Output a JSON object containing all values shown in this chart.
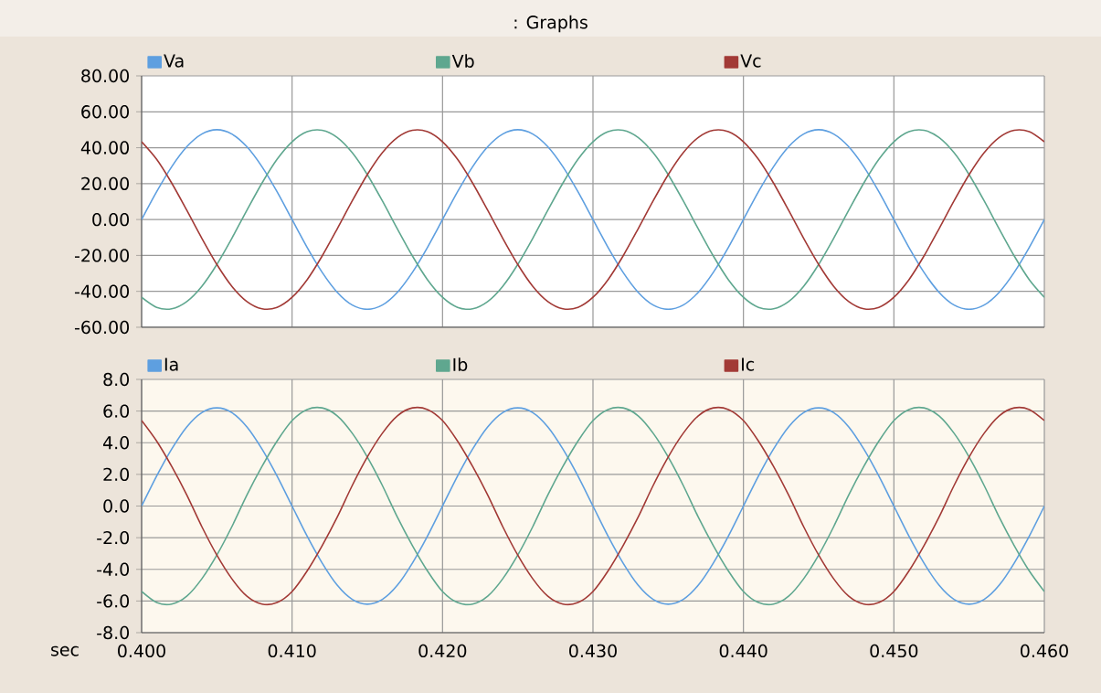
{
  "chart_data": [
    {
      "type": "line",
      "title": ": Graphs",
      "legend": "top",
      "grid": true,
      "tick_labels": "y",
      "x": [
        0.4,
        0.401,
        0.402,
        0.403,
        0.404,
        0.405,
        0.406,
        0.407,
        0.408,
        0.409,
        0.41,
        0.411,
        0.412,
        0.413,
        0.414,
        0.415,
        0.416,
        0.417,
        0.418,
        0.419,
        0.42,
        0.421,
        0.422,
        0.423,
        0.424,
        0.425,
        0.426,
        0.427,
        0.428,
        0.429,
        0.43,
        0.431,
        0.432,
        0.433,
        0.434,
        0.435,
        0.436,
        0.437,
        0.438,
        0.439,
        0.44,
        0.441,
        0.442,
        0.443,
        0.444,
        0.445,
        0.446,
        0.447,
        0.448,
        0.449,
        0.45,
        0.451,
        0.452,
        0.453,
        0.454,
        0.455,
        0.456,
        0.457,
        0.458,
        0.459,
        0.46
      ],
      "xlim": [
        0.4,
        0.46
      ],
      "xticks": [
        {
          "value": 0.4,
          "label": null
        },
        {
          "value": 0.41,
          "label": null
        },
        {
          "value": 0.42,
          "label": null
        },
        {
          "value": 0.43,
          "label": null
        },
        {
          "value": 0.44,
          "label": null
        },
        {
          "value": 0.45,
          "label": null
        },
        {
          "value": 0.46,
          "label": null
        }
      ],
      "ylim": [
        -60,
        80
      ],
      "yticks": [
        {
          "value": -60,
          "label": "-60.00"
        },
        {
          "value": -40,
          "label": "-40.00"
        },
        {
          "value": -20,
          "label": "-20.00"
        },
        {
          "value": 0,
          "label": "0.00"
        },
        {
          "value": 20,
          "label": "20.00"
        },
        {
          "value": 40,
          "label": "40.00"
        },
        {
          "value": 60,
          "label": "60.00"
        },
        {
          "value": 80,
          "label": "80.00"
        }
      ],
      "series": [
        {
          "name": "Va",
          "color": "#5e9fe0",
          "values": [
            0,
            15.5,
            29.4,
            40.5,
            47.6,
            50,
            47.6,
            40.5,
            29.4,
            15.5,
            0,
            -15.5,
            -29.4,
            -40.5,
            -47.6,
            -50,
            -47.6,
            -40.5,
            -29.4,
            -15.5,
            0,
            15.5,
            29.4,
            40.5,
            47.6,
            50,
            47.6,
            40.5,
            29.4,
            15.5,
            0,
            -15.5,
            -29.4,
            -40.5,
            -47.6,
            -50,
            -47.6,
            -40.5,
            -29.4,
            -15.5,
            0,
            15.5,
            29.4,
            40.5,
            47.6,
            50,
            47.6,
            40.5,
            29.4,
            15.5,
            0,
            -15.5,
            -29.4,
            -40.5,
            -47.6,
            -50,
            -47.6,
            -40.5,
            -29.4,
            -15.5,
            0
          ]
        },
        {
          "name": "Vb",
          "color": "#5fa78f",
          "values": [
            -43.3,
            -48.9,
            -49.7,
            -45.7,
            -37.2,
            -25,
            -10.4,
            5.2,
            20.3,
            33.5,
            43.3,
            48.9,
            49.7,
            45.7,
            37.2,
            25,
            10.4,
            -5.2,
            -20.3,
            -33.5,
            -43.3,
            -48.9,
            -49.7,
            -45.7,
            -37.2,
            -25,
            -10.4,
            5.2,
            20.3,
            33.5,
            43.3,
            48.9,
            49.7,
            45.7,
            37.2,
            25,
            10.4,
            -5.2,
            -20.3,
            -33.5,
            -43.3,
            -48.9,
            -49.7,
            -45.7,
            -37.2,
            -25,
            -10.4,
            5.2,
            20.3,
            33.5,
            43.3,
            48.9,
            49.7,
            45.7,
            37.2,
            25,
            10.4,
            -5.2,
            -20.3,
            -33.5,
            -43.3
          ]
        },
        {
          "name": "Vc",
          "color": "#a23a36",
          "values": [
            43.3,
            33.5,
            20.3,
            5.2,
            -10.4,
            -25,
            -37.2,
            -45.7,
            -49.7,
            -48.9,
            -43.3,
            -33.5,
            -20.3,
            -5.2,
            10.4,
            25,
            37.2,
            45.7,
            49.7,
            48.9,
            43.3,
            33.5,
            20.3,
            5.2,
            -10.4,
            -25,
            -37.2,
            -45.7,
            -49.7,
            -48.9,
            -43.3,
            -33.5,
            -20.3,
            -5.2,
            10.4,
            25,
            37.2,
            45.7,
            49.7,
            48.9,
            43.3,
            33.5,
            20.3,
            5.2,
            -10.4,
            -25,
            -37.2,
            -45.7,
            -49.7,
            -48.9,
            -43.3,
            -33.5,
            -20.3,
            -5.2,
            10.4,
            25,
            37.2,
            45.7,
            49.7,
            48.9,
            43.3
          ]
        }
      ]
    },
    {
      "type": "line",
      "xlabel": "sec",
      "legend": "top",
      "grid": true,
      "x": [
        0.4,
        0.401,
        0.402,
        0.403,
        0.404,
        0.405,
        0.406,
        0.407,
        0.408,
        0.409,
        0.41,
        0.411,
        0.412,
        0.413,
        0.414,
        0.415,
        0.416,
        0.417,
        0.418,
        0.419,
        0.42,
        0.421,
        0.422,
        0.423,
        0.424,
        0.425,
        0.426,
        0.427,
        0.428,
        0.429,
        0.43,
        0.431,
        0.432,
        0.433,
        0.434,
        0.435,
        0.436,
        0.437,
        0.438,
        0.439,
        0.44,
        0.441,
        0.442,
        0.443,
        0.444,
        0.445,
        0.446,
        0.447,
        0.448,
        0.449,
        0.45,
        0.451,
        0.452,
        0.453,
        0.454,
        0.455,
        0.456,
        0.457,
        0.458,
        0.459,
        0.46
      ],
      "xlim": [
        0.4,
        0.46
      ],
      "xticks": [
        {
          "value": 0.4,
          "label": "0.400"
        },
        {
          "value": 0.41,
          "label": "0.410"
        },
        {
          "value": 0.42,
          "label": "0.420"
        },
        {
          "value": 0.43,
          "label": "0.430"
        },
        {
          "value": 0.44,
          "label": "0.440"
        },
        {
          "value": 0.45,
          "label": "0.450"
        },
        {
          "value": 0.46,
          "label": "0.460"
        }
      ],
      "ylim": [
        -8,
        8
      ],
      "yticks": [
        {
          "value": -8,
          "label": "-8.0"
        },
        {
          "value": -6,
          "label": "-6.0"
        },
        {
          "value": -4,
          "label": "-4.0"
        },
        {
          "value": -2,
          "label": "-2.0"
        },
        {
          "value": 0,
          "label": "0.0"
        },
        {
          "value": 2,
          "label": "2.0"
        },
        {
          "value": 4,
          "label": "4.0"
        },
        {
          "value": 6,
          "label": "6.0"
        },
        {
          "value": 8,
          "label": "8.0"
        }
      ],
      "series": [
        {
          "name": "Ia",
          "color": "#5e9fe0",
          "values": [
            0,
            1.9,
            3.6,
            5.0,
            5.9,
            6.2,
            5.9,
            5.0,
            3.6,
            1.9,
            0,
            -1.9,
            -3.6,
            -5.0,
            -5.9,
            -6.2,
            -5.9,
            -5.0,
            -3.6,
            -1.9,
            0,
            1.9,
            3.6,
            5.0,
            5.9,
            6.2,
            5.9,
            5.0,
            3.6,
            1.9,
            0,
            -1.9,
            -3.6,
            -5.0,
            -5.9,
            -6.2,
            -5.9,
            -5.0,
            -3.6,
            -1.9,
            0,
            1.9,
            3.6,
            5.0,
            5.9,
            6.2,
            5.9,
            5.0,
            3.6,
            1.9,
            0,
            -1.9,
            -3.6,
            -5.0,
            -5.9,
            -6.2,
            -5.9,
            -5.0,
            -3.6,
            -1.9,
            0
          ]
        },
        {
          "name": "Ib",
          "color": "#5fa78f",
          "values": [
            -5.4,
            -6.1,
            -6.2,
            -5.7,
            -4.6,
            -3.1,
            -1.3,
            0.7,
            2.5,
            4.1,
            5.4,
            6.1,
            6.2,
            5.7,
            4.6,
            3.1,
            1.3,
            -0.7,
            -2.5,
            -4.1,
            -5.4,
            -6.1,
            -6.2,
            -5.7,
            -4.6,
            -3.1,
            -1.3,
            0.7,
            2.5,
            4.1,
            5.4,
            6.1,
            6.2,
            5.7,
            4.6,
            3.1,
            1.3,
            -0.7,
            -2.5,
            -4.1,
            -5.4,
            -6.1,
            -6.2,
            -5.7,
            -4.6,
            -3.1,
            -1.3,
            0.7,
            2.5,
            4.1,
            5.4,
            6.1,
            6.2,
            5.7,
            4.6,
            3.1,
            1.3,
            -0.7,
            -2.5,
            -4.1,
            -5.4
          ]
        },
        {
          "name": "Ic",
          "color": "#a23a36",
          "values": [
            5.4,
            4.1,
            2.5,
            0.7,
            -1.3,
            -3.1,
            -4.6,
            -5.7,
            -6.2,
            -6.1,
            -5.4,
            -4.1,
            -2.5,
            -0.7,
            1.3,
            3.1,
            4.6,
            5.7,
            6.2,
            6.1,
            5.4,
            4.1,
            2.5,
            0.7,
            -1.3,
            -3.1,
            -4.6,
            -5.7,
            -6.2,
            -6.1,
            -5.4,
            -4.1,
            -2.5,
            -0.7,
            1.3,
            3.1,
            4.6,
            5.7,
            6.2,
            6.1,
            5.4,
            4.1,
            2.5,
            0.7,
            -1.3,
            -3.1,
            -4.6,
            -5.7,
            -6.2,
            -6.1,
            -5.4,
            -4.1,
            -2.5,
            -0.7,
            1.3,
            3.1,
            4.6,
            5.7,
            6.2,
            6.1,
            5.4
          ]
        }
      ]
    }
  ]
}
